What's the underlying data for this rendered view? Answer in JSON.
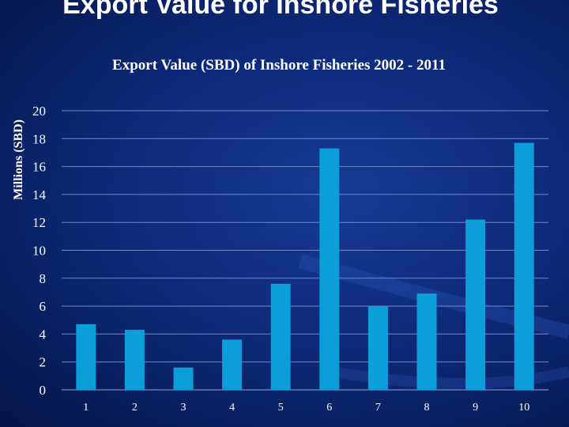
{
  "slide": {
    "title": "Export Value for Inshore Fisheries"
  },
  "colors": {
    "background": "#0d2a7a",
    "bar": "#0a9fd8",
    "gridline": "#6f86c4",
    "text": "#ffffff"
  },
  "chart_data": {
    "type": "bar",
    "title": "Export Value (SBD) of Inshore Fisheries 2002 - 2011",
    "xlabel": "",
    "ylabel": "Millions (SBD)",
    "categories": [
      "1",
      "2",
      "3",
      "4",
      "5",
      "6",
      "7",
      "8",
      "9",
      "10"
    ],
    "values": [
      4.7,
      4.3,
      1.6,
      3.6,
      7.6,
      17.3,
      6.0,
      6.9,
      12.2,
      17.7
    ],
    "ylim": [
      0,
      20
    ],
    "yticks": [
      "0",
      "2",
      "4",
      "6",
      "8",
      "10",
      "12",
      "14",
      "16",
      "18",
      "20"
    ],
    "grid": true,
    "legend": "none"
  }
}
